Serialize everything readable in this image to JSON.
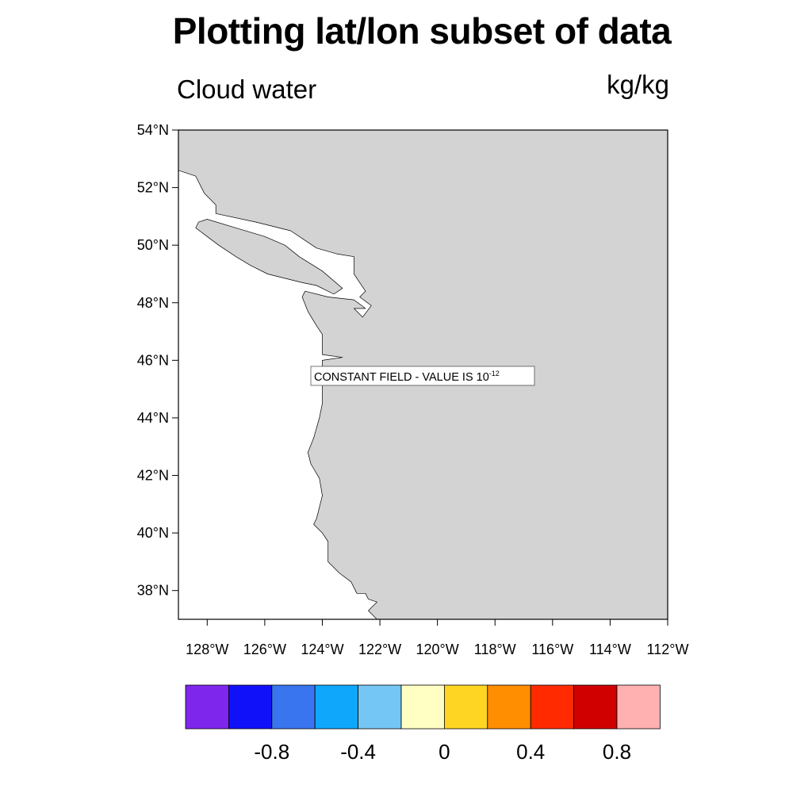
{
  "title": "Plotting lat/lon subset of data",
  "left_string": "Cloud water",
  "right_string": "kg/kg",
  "colors": {
    "land": "#d3d3d3",
    "ocean": "#ffffff",
    "outline": "#000000"
  },
  "annotation": {
    "text": "CONSTANT FIELD - VALUE IS 10",
    "exponent": "-12"
  },
  "map": {
    "lon_range": [
      -129,
      -112
    ],
    "lat_range": [
      37,
      54
    ],
    "lat_ticks": [
      {
        "value": 54,
        "label": "54°N"
      },
      {
        "value": 52,
        "label": "52°N"
      },
      {
        "value": 50,
        "label": "50°N"
      },
      {
        "value": 48,
        "label": "48°N"
      },
      {
        "value": 46,
        "label": "46°N"
      },
      {
        "value": 44,
        "label": "44°N"
      },
      {
        "value": 42,
        "label": "42°N"
      },
      {
        "value": 40,
        "label": "40°N"
      },
      {
        "value": 38,
        "label": "38°N"
      }
    ],
    "lon_ticks": [
      {
        "value": -128,
        "label": "128°W"
      },
      {
        "value": -126,
        "label": "126°W"
      },
      {
        "value": -124,
        "label": "124°W"
      },
      {
        "value": -122,
        "label": "122°W"
      },
      {
        "value": -120,
        "label": "120°W"
      },
      {
        "value": -118,
        "label": "118°W"
      },
      {
        "value": -116,
        "label": "116°W"
      },
      {
        "value": -114,
        "label": "114°W"
      },
      {
        "value": -112,
        "label": "112°W"
      }
    ],
    "coastline": [
      [
        -129,
        52.6
      ],
      [
        -128.4,
        52.4
      ],
      [
        -128.1,
        51.8
      ],
      [
        -127.7,
        51.4
      ],
      [
        -127.7,
        51.1
      ],
      [
        -126.3,
        50.8
      ],
      [
        -125.1,
        50.5
      ],
      [
        -124.2,
        49.9
      ],
      [
        -123.5,
        49.7
      ],
      [
        -122.9,
        49.6
      ],
      [
        -122.9,
        49.0
      ],
      [
        -122.7,
        48.7
      ],
      [
        -122.5,
        48.4
      ],
      [
        -122.7,
        48.2
      ],
      [
        -122.3,
        47.9
      ],
      [
        -122.6,
        47.5
      ],
      [
        -122.9,
        47.8
      ],
      [
        -122.5,
        47.8
      ],
      [
        -122.9,
        48.1
      ],
      [
        -123.8,
        48.2
      ],
      [
        -124.6,
        48.4
      ],
      [
        -124.7,
        48.2
      ],
      [
        -124.5,
        47.7
      ],
      [
        -124.2,
        47.2
      ],
      [
        -124.0,
        46.9
      ],
      [
        -124.0,
        46.2
      ],
      [
        -123.3,
        46.1
      ],
      [
        -124.0,
        46.0
      ],
      [
        -124.0,
        45.5
      ],
      [
        -124.0,
        44.5
      ],
      [
        -124.1,
        44.0
      ],
      [
        -124.3,
        43.3
      ],
      [
        -124.5,
        42.8
      ],
      [
        -124.4,
        42.4
      ],
      [
        -124.1,
        41.9
      ],
      [
        -124.0,
        41.3
      ],
      [
        -124.2,
        40.5
      ],
      [
        -124.3,
        40.3
      ],
      [
        -124.0,
        40.0
      ],
      [
        -123.8,
        39.7
      ],
      [
        -123.8,
        39.0
      ],
      [
        -123.4,
        38.6
      ],
      [
        -123.0,
        38.3
      ],
      [
        -122.8,
        37.9
      ],
      [
        -122.5,
        37.9
      ],
      [
        -122.4,
        37.7
      ],
      [
        -122.1,
        37.6
      ],
      [
        -122.4,
        37.3
      ],
      [
        -122.1,
        37.0
      ]
    ],
    "island": [
      [
        -128.3,
        50.8
      ],
      [
        -128.0,
        50.9
      ],
      [
        -127.0,
        50.6
      ],
      [
        -126.0,
        50.3
      ],
      [
        -125.3,
        50.0
      ],
      [
        -124.8,
        49.6
      ],
      [
        -124.0,
        49.1
      ],
      [
        -123.3,
        48.5
      ],
      [
        -123.6,
        48.3
      ],
      [
        -124.2,
        48.6
      ],
      [
        -124.7,
        48.7
      ],
      [
        -125.5,
        48.9
      ],
      [
        -125.9,
        49.0
      ],
      [
        -126.5,
        49.3
      ],
      [
        -127.0,
        49.6
      ],
      [
        -127.6,
        50.0
      ],
      [
        -128.0,
        50.3
      ],
      [
        -128.4,
        50.6
      ]
    ]
  },
  "colorbar": {
    "colors": [
      "#7f26ec",
      "#1111f9",
      "#3875ee",
      "#0ea7fb",
      "#74c6f4",
      "#fffec3",
      "#ffd523",
      "#ff8e00",
      "#ff2a00",
      "#d00000",
      "#ffb0b0"
    ],
    "labels": [
      "-0.8",
      "-0.4",
      "0",
      "0.4",
      "0.8"
    ]
  }
}
